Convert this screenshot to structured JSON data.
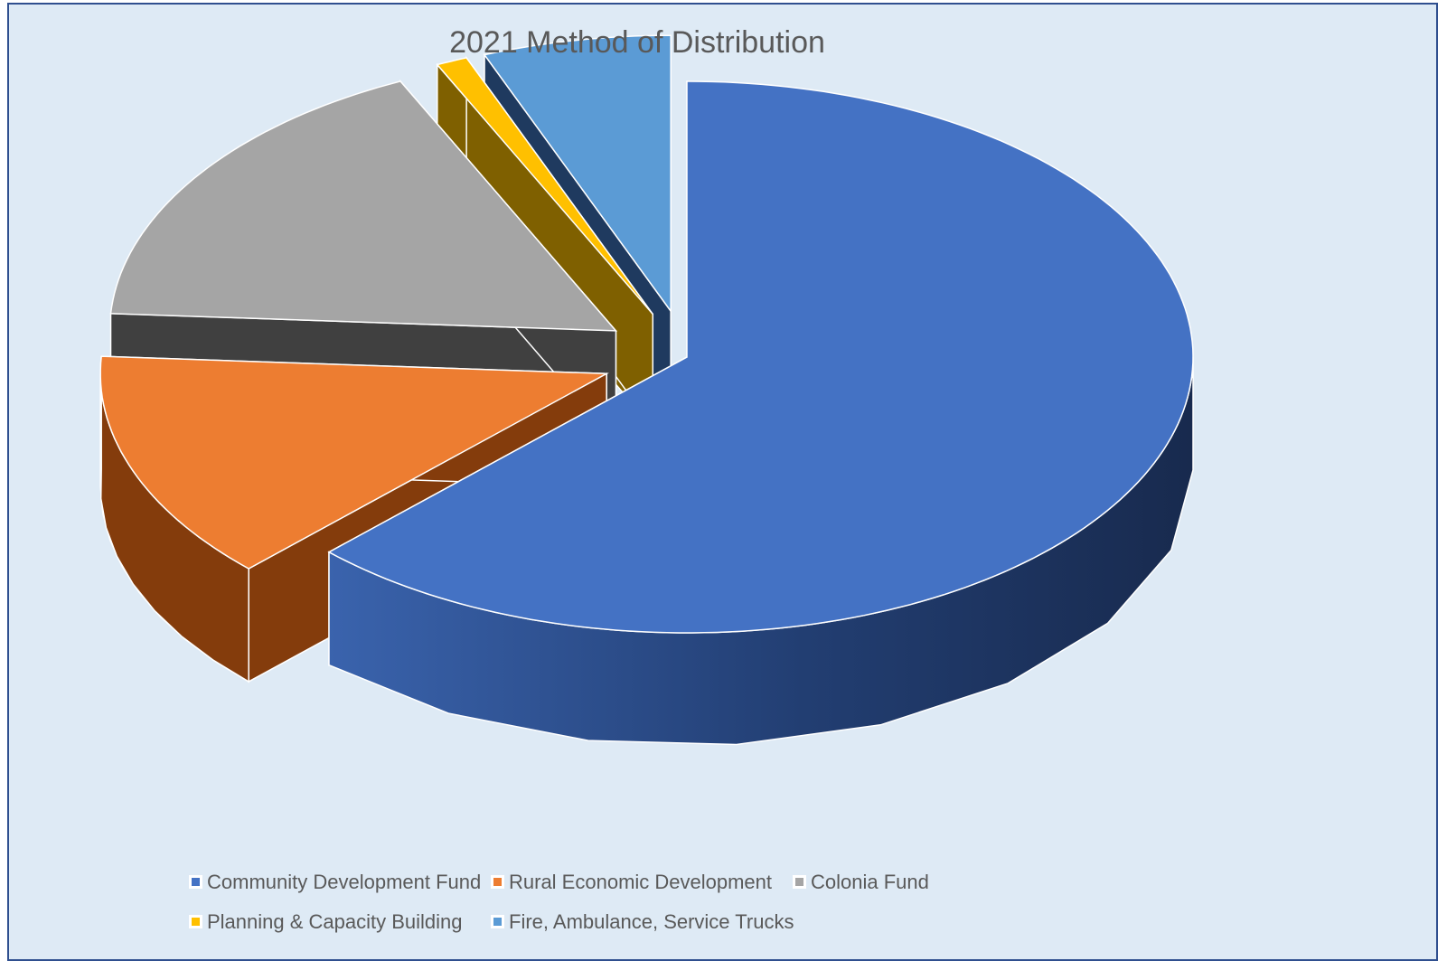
{
  "chart_data": {
    "type": "pie",
    "title": "2021 Method of Distribution",
    "style": "3d-exploded",
    "legend_position": "bottom",
    "series": [
      {
        "name": "Community Development Fund",
        "value": 62.5,
        "color": "#4472c4",
        "side_color": "#1f3864",
        "exploded": false
      },
      {
        "name": "Rural Economic Development",
        "value": 13.5,
        "color": "#ed7d31",
        "side_color": "#843c0c",
        "exploded": true
      },
      {
        "name": "Colonia Fund",
        "value": 17.0,
        "color": "#a5a5a5",
        "side_color": "#404040",
        "exploded": true
      },
      {
        "name": "Planning & Capacity Building",
        "value": 1.0,
        "color": "#ffc000",
        "side_color": "#7f6000",
        "exploded": true
      },
      {
        "name": "Fire, Ambulance, Service Trucks",
        "value": 6.0,
        "color": "#5b9bd5",
        "side_color": "#1f3a5f",
        "exploded": true
      }
    ]
  }
}
